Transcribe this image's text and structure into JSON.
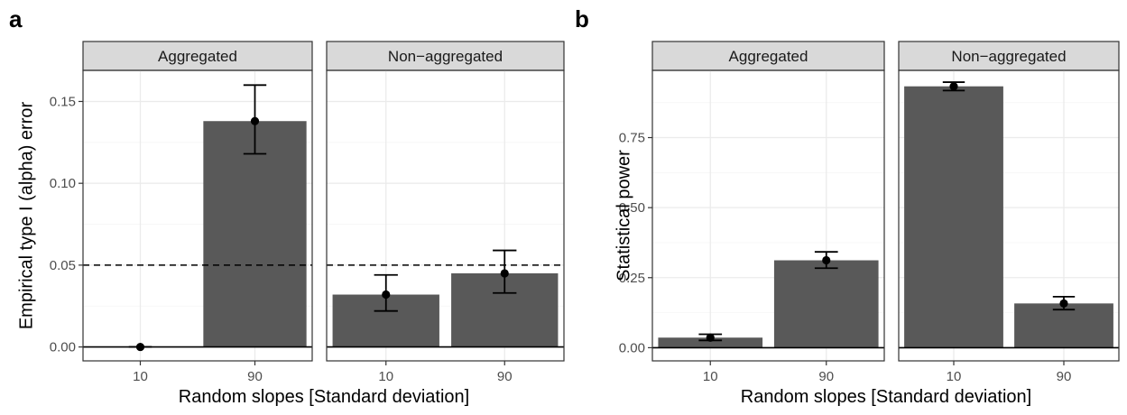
{
  "panels": [
    {
      "letter": "a",
      "ylabel": "Empirical type I (alpha) error",
      "xlabel": "Random slopes [Standard deviation]",
      "ylim": [
        -0.0085,
        0.169
      ],
      "yticks": [
        0.0,
        0.05,
        0.1,
        0.15
      ],
      "ytick_labels": [
        "0.00",
        "0.05",
        "0.10",
        "0.15"
      ],
      "hline": {
        "value": 0.05,
        "style": "dashed"
      },
      "chart_data": {
        "type": "bar",
        "categories": [
          "10",
          "90"
        ],
        "facets": [
          {
            "label": "Aggregated",
            "values": [
              0.0,
              0.138
            ],
            "ci_low": [
              0.0,
              0.118
            ],
            "ci_high": [
              0.0,
              0.16
            ]
          },
          {
            "label": "Non−aggregated",
            "values": [
              0.032,
              0.045
            ],
            "ci_low": [
              0.022,
              0.033
            ],
            "ci_high": [
              0.044,
              0.059
            ]
          }
        ]
      }
    },
    {
      "letter": "b",
      "ylabel": "Statistical power",
      "xlabel": "Random slopes [Standard deviation]",
      "ylim": [
        -0.047,
        0.99
      ],
      "yticks": [
        0.0,
        0.25,
        0.5,
        0.75
      ],
      "ytick_labels": [
        "0.00",
        "0.25",
        "0.50",
        "0.75"
      ],
      "hline": null,
      "chart_data": {
        "type": "bar",
        "categories": [
          "10",
          "90"
        ],
        "facets": [
          {
            "label": "Aggregated",
            "values": [
              0.036,
              0.312
            ],
            "ci_low": [
              0.026,
              0.284
            ],
            "ci_high": [
              0.048,
              0.342
            ]
          },
          {
            "label": "Non−aggregated",
            "values": [
              0.933,
              0.158
            ],
            "ci_low": [
              0.918,
              0.136
            ],
            "ci_high": [
              0.948,
              0.182
            ]
          }
        ]
      }
    }
  ],
  "colors": {
    "bar": "#595959",
    "strip_bg": "#d9d9d9",
    "strip_border": "#333333",
    "panel_border": "#333333",
    "grid_major": "#ebebeb",
    "grid_minor": "#f5f5f5",
    "point": "#000000",
    "errorbar": "#000000",
    "zero_line": "#000000",
    "ref_line": "#000000"
  }
}
